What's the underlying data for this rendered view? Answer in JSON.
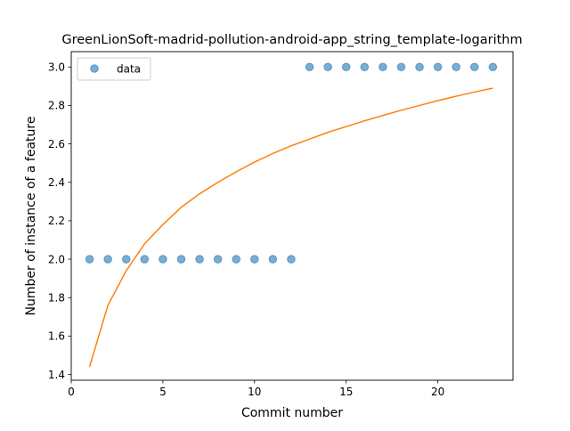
{
  "chart_data": {
    "type": "scatter",
    "title": "GreenLionSoft-madrid-pollution-android-app_string_template-logarithm",
    "xlabel": "Commit number",
    "ylabel": "Number of instance of a feature",
    "xlim": [
      0,
      24.1
    ],
    "ylim": [
      1.37,
      3.08
    ],
    "x_ticks": [
      0,
      5,
      10,
      15,
      20
    ],
    "x_tick_labels": [
      "0",
      "5",
      "10",
      "15",
      "20"
    ],
    "y_ticks": [
      1.4,
      1.6,
      1.8,
      2.0,
      2.2,
      2.4,
      2.6,
      2.8,
      3.0
    ],
    "y_tick_labels": [
      "1.4",
      "1.6",
      "1.8",
      "2.0",
      "2.2",
      "2.4",
      "2.6",
      "2.8",
      "3.0"
    ],
    "grid": false,
    "legend_position": "top-left",
    "series": [
      {
        "name": "data",
        "kind": "scatter",
        "color": "#1f77b4",
        "x": [
          1,
          2,
          3,
          4,
          5,
          6,
          7,
          8,
          9,
          10,
          11,
          12,
          13,
          14,
          15,
          16,
          17,
          18,
          19,
          20,
          21,
          22,
          23
        ],
        "y": [
          2,
          2,
          2,
          2,
          2,
          2,
          2,
          2,
          2,
          2,
          2,
          2,
          3,
          3,
          3,
          3,
          3,
          3,
          3,
          3,
          3,
          3,
          3
        ]
      },
      {
        "kind": "line",
        "color": "#ff7f0e",
        "x": [
          1,
          2,
          3,
          4,
          5,
          6,
          7,
          8,
          9,
          10,
          11,
          12,
          13,
          14,
          15,
          16,
          17,
          18,
          19,
          20,
          21,
          22,
          23
        ],
        "y": [
          1.44,
          1.76,
          1.94,
          2.08,
          2.18,
          2.27,
          2.34,
          2.4,
          2.455,
          2.505,
          2.55,
          2.59,
          2.625,
          2.66,
          2.69,
          2.72,
          2.748,
          2.775,
          2.8,
          2.825,
          2.848,
          2.87,
          2.89
        ]
      }
    ]
  }
}
